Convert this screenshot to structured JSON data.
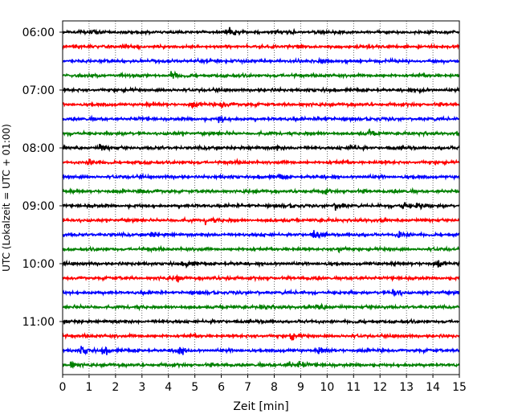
{
  "chart_data": {
    "type": "line",
    "title": "",
    "xlabel": "Zeit  [min]",
    "ylabel": "UTC (Lokalzeit = UTC + 01:00)",
    "xlim": [
      0,
      15
    ],
    "x_ticks": [
      0,
      1,
      2,
      3,
      4,
      5,
      6,
      7,
      8,
      9,
      10,
      11,
      12,
      13,
      14,
      15
    ],
    "x_tick_labels": [
      "0",
      "1",
      "2",
      "3",
      "4",
      "5",
      "6",
      "7",
      "8",
      "9",
      "10",
      "11",
      "12",
      "13",
      "14",
      "15"
    ],
    "y_tick_labels": [
      "06:00",
      "07:00",
      "08:00",
      "09:00",
      "10:00",
      "11:00"
    ],
    "y_tick_trace_index": [
      0,
      4,
      8,
      12,
      16,
      20
    ],
    "vertical_grid": true,
    "trace_interval_minutes": 15,
    "trace_start": "06:00",
    "trace_count": 24,
    "trace_colors": [
      "#000000",
      "#ff0000",
      "#0000ff",
      "#008000"
    ],
    "events": [
      {
        "trace": 0,
        "x": 6.3,
        "amp": 1.0
      },
      {
        "trace": 0,
        "x": 1.1,
        "amp": 0.7
      },
      {
        "trace": 2,
        "x": 9.7,
        "amp": 0.8
      },
      {
        "trace": 3,
        "x": 4.1,
        "amp": 0.8
      },
      {
        "trace": 4,
        "x": 13.5,
        "amp": 0.6
      },
      {
        "trace": 5,
        "x": 6.0,
        "amp": 1.5
      },
      {
        "trace": 5,
        "x": 4.9,
        "amp": 0.8
      },
      {
        "trace": 6,
        "x": 5.9,
        "amp": 1.2
      },
      {
        "trace": 6,
        "x": 9.6,
        "amp": 0.8
      },
      {
        "trace": 7,
        "x": 11.6,
        "amp": 0.9
      },
      {
        "trace": 8,
        "x": 1.4,
        "amp": 1.0
      },
      {
        "trace": 8,
        "x": 10.9,
        "amp": 1.0
      },
      {
        "trace": 8,
        "x": 8.0,
        "amp": 0.8
      },
      {
        "trace": 9,
        "x": 1.0,
        "amp": 0.9
      },
      {
        "trace": 10,
        "x": 8.2,
        "amp": 0.7
      },
      {
        "trace": 11,
        "x": 9.8,
        "amp": 1.2
      },
      {
        "trace": 11,
        "x": 2.9,
        "amp": 0.8
      },
      {
        "trace": 12,
        "x": 12.8,
        "amp": 1.2
      },
      {
        "trace": 12,
        "x": 13.4,
        "amp": 1.5
      },
      {
        "trace": 12,
        "x": 10.3,
        "amp": 1.0
      },
      {
        "trace": 13,
        "x": 5.4,
        "amp": 1.2
      },
      {
        "trace": 14,
        "x": 9.5,
        "amp": 1.2
      },
      {
        "trace": 14,
        "x": 12.7,
        "amp": 1.2
      },
      {
        "trace": 14,
        "x": 3.3,
        "amp": 0.8
      },
      {
        "trace": 15,
        "x": 10.4,
        "amp": 0.8
      },
      {
        "trace": 16,
        "x": 4.7,
        "amp": 1.0
      },
      {
        "trace": 16,
        "x": 14.2,
        "amp": 1.0
      },
      {
        "trace": 17,
        "x": 4.3,
        "amp": 1.0
      },
      {
        "trace": 17,
        "x": 6.2,
        "amp": 0.8
      },
      {
        "trace": 18,
        "x": 12.5,
        "amp": 1.2
      },
      {
        "trace": 19,
        "x": 7.5,
        "amp": 0.9
      },
      {
        "trace": 19,
        "x": 9.6,
        "amp": 0.9
      },
      {
        "trace": 21,
        "x": 8.6,
        "amp": 1.2
      },
      {
        "trace": 22,
        "x": 0.7,
        "amp": 1.5
      },
      {
        "trace": 22,
        "x": 1.5,
        "amp": 1.2
      },
      {
        "trace": 22,
        "x": 4.3,
        "amp": 1.8
      },
      {
        "trace": 22,
        "x": 9.7,
        "amp": 0.8
      },
      {
        "trace": 23,
        "x": 0.3,
        "amp": 1.0
      },
      {
        "trace": 23,
        "x": 8.5,
        "amp": 1.0
      },
      {
        "trace": 23,
        "x": 8.9,
        "amp": 0.8
      }
    ]
  }
}
